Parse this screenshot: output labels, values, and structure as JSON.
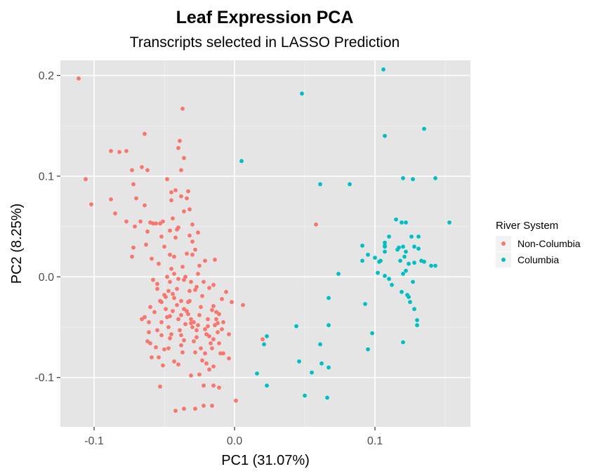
{
  "chart_data": {
    "type": "scatter",
    "title": "Leaf Expression PCA",
    "subtitle": "Transcripts selected in LASSO Prediction",
    "xlabel": "PC1 (31.07%)",
    "ylabel": "PC2 (8.25%)",
    "xlim": [
      -0.124,
      0.168
    ],
    "ylim": [
      -0.149,
      0.215
    ],
    "x_ticks": [
      -0.1,
      0.0,
      0.1
    ],
    "x_tick_labels": [
      "-0.1",
      "0.0",
      "0.1"
    ],
    "y_ticks": [
      -0.1,
      0.0,
      0.1,
      0.2
    ],
    "y_tick_labels": [
      "-0.1",
      "0.0",
      "0.1",
      "0.2"
    ],
    "grid": true,
    "panel_background": "#e5e5e5",
    "legend": {
      "title": "River System",
      "position": "right"
    },
    "series": [
      {
        "name": "Non-Columbia",
        "color": "#f8766d",
        "points": [
          [
            -0.111,
            0.197
          ],
          [
            -0.106,
            0.097
          ],
          [
            -0.102,
            0.072
          ],
          [
            -0.088,
            0.125
          ],
          [
            -0.088,
            0.077
          ],
          [
            -0.085,
            0.063
          ],
          [
            -0.082,
            0.124
          ],
          [
            -0.077,
            0.125
          ],
          [
            -0.077,
            0.055
          ],
          [
            -0.073,
            0.106
          ],
          [
            -0.072,
            0.092
          ],
          [
            -0.07,
            0.078
          ],
          [
            -0.066,
            0.109
          ],
          [
            -0.064,
            0.142
          ],
          [
            -0.062,
            0.106
          ],
          [
            -0.072,
            0.029
          ],
          [
            -0.073,
            0.02
          ],
          [
            -0.071,
            0.05
          ],
          [
            -0.067,
            0.055
          ],
          [
            -0.064,
            0.071
          ],
          [
            -0.063,
            0.032
          ],
          [
            -0.062,
            0.045
          ],
          [
            -0.06,
            0.054
          ],
          [
            -0.058,
            0.053
          ],
          [
            -0.056,
            0.053
          ],
          [
            -0.053,
            0.053
          ],
          [
            -0.051,
            0.055
          ],
          [
            -0.045,
            0.076
          ],
          [
            -0.046,
            0.046
          ],
          [
            -0.052,
            0.04
          ],
          [
            -0.05,
            0.03
          ],
          [
            -0.046,
            0.022
          ],
          [
            -0.044,
            0.058
          ],
          [
            -0.045,
            0.084
          ],
          [
            -0.048,
            0.097
          ],
          [
            -0.042,
            0.086
          ],
          [
            -0.04,
            0.128
          ],
          [
            -0.039,
            0.135
          ],
          [
            -0.037,
            0.167
          ],
          [
            -0.038,
            0.106
          ],
          [
            -0.036,
            0.118
          ],
          [
            -0.038,
            0.08
          ],
          [
            -0.036,
            0.065
          ],
          [
            -0.034,
            0.078
          ],
          [
            -0.033,
            0.085
          ],
          [
            -0.032,
            0.067
          ],
          [
            -0.03,
            0.052
          ],
          [
            -0.03,
            0.035
          ],
          [
            -0.032,
            0.041
          ],
          [
            -0.034,
            0.023
          ],
          [
            -0.03,
            0.022
          ],
          [
            -0.028,
            0.027
          ],
          [
            -0.026,
            0.044
          ],
          [
            -0.04,
            0.049
          ],
          [
            -0.041,
            0.047
          ],
          [
            -0.042,
            0.039
          ],
          [
            -0.043,
            0.02
          ],
          [
            -0.045,
            0.008
          ],
          [
            -0.043,
            0.003
          ],
          [
            -0.046,
            -0.005
          ],
          [
            -0.047,
            -0.014
          ],
          [
            -0.049,
            -0.02
          ],
          [
            -0.052,
            -0.025
          ],
          [
            -0.055,
            -0.012
          ],
          [
            -0.058,
            -0.003
          ],
          [
            -0.059,
            0.018
          ],
          [
            -0.06,
            -0.03
          ],
          [
            -0.057,
            -0.035
          ],
          [
            -0.061,
            -0.045
          ],
          [
            -0.061,
            -0.055
          ],
          [
            -0.062,
            -0.064
          ],
          [
            -0.059,
            -0.08
          ],
          [
            -0.064,
            -0.04
          ],
          [
            -0.066,
            -0.042
          ],
          [
            -0.06,
            -0.066
          ],
          [
            -0.056,
            -0.07
          ],
          [
            -0.055,
            -0.053
          ],
          [
            -0.052,
            -0.045
          ],
          [
            -0.052,
            -0.058
          ],
          [
            -0.05,
            -0.072
          ],
          [
            -0.047,
            -0.071
          ],
          [
            -0.047,
            -0.05
          ],
          [
            -0.046,
            -0.039
          ],
          [
            -0.044,
            -0.034
          ],
          [
            -0.043,
            -0.021
          ],
          [
            -0.041,
            -0.012
          ],
          [
            -0.041,
            -0.028
          ],
          [
            -0.04,
            -0.042
          ],
          [
            -0.039,
            -0.053
          ],
          [
            -0.038,
            -0.058
          ],
          [
            -0.038,
            -0.068
          ],
          [
            -0.037,
            -0.075
          ],
          [
            -0.036,
            -0.063
          ],
          [
            -0.035,
            -0.047
          ],
          [
            -0.034,
            -0.034
          ],
          [
            -0.033,
            -0.025
          ],
          [
            -0.032,
            -0.014
          ],
          [
            -0.031,
            -0.005
          ],
          [
            -0.03,
            -0.05
          ],
          [
            -0.029,
            -0.064
          ],
          [
            -0.028,
            -0.075
          ],
          [
            -0.027,
            -0.06
          ],
          [
            -0.026,
            -0.048
          ],
          [
            -0.025,
            -0.038
          ],
          [
            -0.024,
            -0.03
          ],
          [
            -0.023,
            -0.019
          ],
          [
            -0.022,
            -0.005
          ],
          [
            -0.021,
            -0.052
          ],
          [
            -0.02,
            -0.057
          ],
          [
            -0.019,
            -0.049
          ],
          [
            -0.019,
            -0.042
          ],
          [
            -0.018,
            -0.059
          ],
          [
            -0.017,
            -0.066
          ],
          [
            -0.016,
            -0.071
          ],
          [
            -0.015,
            -0.062
          ],
          [
            -0.014,
            -0.048
          ],
          [
            -0.013,
            -0.042
          ],
          [
            -0.012,
            -0.046
          ],
          [
            -0.012,
            -0.055
          ],
          [
            -0.011,
            -0.066
          ],
          [
            -0.01,
            -0.076
          ],
          [
            -0.009,
            -0.052
          ],
          [
            -0.008,
            -0.045
          ],
          [
            -0.018,
            -0.011
          ],
          [
            -0.016,
            -0.033
          ],
          [
            -0.015,
            -0.029
          ],
          [
            -0.014,
            0.017
          ],
          [
            -0.021,
            0.016
          ],
          [
            -0.025,
            0.011
          ],
          [
            -0.026,
            0.003
          ],
          [
            -0.027,
            -0.01
          ],
          [
            -0.028,
            -0.013
          ],
          [
            -0.035,
            0.0
          ],
          [
            -0.037,
            0.01
          ],
          [
            -0.036,
            -0.003
          ],
          [
            -0.04,
            -0.002
          ],
          [
            -0.048,
            0.0
          ],
          [
            -0.054,
            0.013
          ],
          [
            -0.055,
            -0.007
          ],
          [
            -0.053,
            -0.024
          ],
          [
            -0.049,
            -0.032
          ],
          [
            -0.05,
            -0.018
          ],
          [
            -0.044,
            -0.017
          ],
          [
            -0.048,
            -0.04
          ],
          [
            -0.046,
            -0.061
          ],
          [
            -0.038,
            -0.024
          ],
          [
            -0.036,
            -0.032
          ],
          [
            -0.033,
            -0.037
          ],
          [
            -0.031,
            -0.042
          ],
          [
            -0.031,
            -0.046
          ],
          [
            -0.029,
            -0.045
          ],
          [
            -0.027,
            -0.053
          ],
          [
            -0.024,
            -0.071
          ],
          [
            -0.023,
            -0.083
          ],
          [
            -0.02,
            -0.086
          ],
          [
            -0.018,
            -0.092
          ],
          [
            -0.015,
            -0.089
          ],
          [
            -0.021,
            -0.076
          ],
          [
            -0.043,
            -0.084
          ],
          [
            -0.04,
            -0.087
          ],
          [
            -0.051,
            -0.088
          ],
          [
            -0.054,
            -0.08
          ],
          [
            -0.053,
            -0.109
          ],
          [
            -0.042,
            -0.133
          ],
          [
            -0.036,
            -0.131
          ],
          [
            -0.028,
            -0.131
          ],
          [
            -0.022,
            -0.128
          ],
          [
            -0.016,
            -0.128
          ],
          [
            -0.022,
            -0.108
          ],
          [
            -0.015,
            -0.108
          ],
          [
            -0.011,
            -0.11
          ],
          [
            -0.025,
            -0.097
          ],
          [
            -0.031,
            -0.098
          ],
          [
            -0.008,
            -0.076
          ],
          [
            -0.004,
            -0.057
          ],
          [
            -0.006,
            -0.015
          ],
          [
            -0.009,
            -0.022
          ],
          [
            -0.011,
            -0.037
          ],
          [
            -0.013,
            -0.035
          ],
          [
            -0.015,
            -0.008
          ],
          [
            0.001,
            -0.123
          ],
          [
            -0.004,
            -0.081
          ],
          [
            -0.002,
            -0.025
          ],
          [
            0.006,
            -0.028
          ],
          [
            -0.038,
            -0.038
          ],
          [
            -0.045,
            -0.057
          ],
          [
            0.02,
            -0.062
          ],
          [
            0.058,
            0.052
          ],
          [
            -0.032,
            -0.024
          ]
        ]
      },
      {
        "name": "Columbia",
        "color": "#00bfc4",
        "points": [
          [
            0.048,
            0.182
          ],
          [
            0.005,
            0.115
          ],
          [
            0.061,
            0.092
          ],
          [
            0.082,
            0.092
          ],
          [
            0.106,
            0.206
          ],
          [
            0.107,
            0.14
          ],
          [
            0.135,
            0.147
          ],
          [
            0.12,
            0.098
          ],
          [
            0.127,
            0.097
          ],
          [
            0.143,
            0.098
          ],
          [
            0.153,
            0.054
          ],
          [
            0.115,
            0.057
          ],
          [
            0.119,
            0.054
          ],
          [
            0.122,
            0.054
          ],
          [
            0.11,
            0.04
          ],
          [
            0.126,
            0.04
          ],
          [
            0.131,
            0.04
          ],
          [
            0.107,
            0.034
          ],
          [
            0.107,
            0.031
          ],
          [
            0.107,
            0.03
          ],
          [
            0.091,
            0.031
          ],
          [
            0.12,
            0.03
          ],
          [
            0.117,
            0.029
          ],
          [
            0.122,
            0.025
          ],
          [
            0.116,
            0.027
          ],
          [
            0.128,
            0.03
          ],
          [
            0.131,
            0.028
          ],
          [
            0.095,
            0.022
          ],
          [
            0.107,
            0.025
          ],
          [
            0.1,
            0.019
          ],
          [
            0.104,
            0.016
          ],
          [
            0.103,
            0.015
          ],
          [
            0.091,
            0.016
          ],
          [
            0.121,
            0.02
          ],
          [
            0.118,
            0.016
          ],
          [
            0.124,
            0.013
          ],
          [
            0.128,
            0.014
          ],
          [
            0.133,
            0.016
          ],
          [
            0.135,
            0.015
          ],
          [
            0.14,
            0.011
          ],
          [
            0.143,
            0.011
          ],
          [
            0.102,
            0.004
          ],
          [
            0.107,
            0.001
          ],
          [
            0.11,
            -0.002
          ],
          [
            0.112,
            -0.008
          ],
          [
            0.12,
            0.003
          ],
          [
            0.122,
            0.006
          ],
          [
            0.127,
            -0.005
          ],
          [
            0.119,
            -0.015
          ],
          [
            0.123,
            -0.018
          ],
          [
            0.124,
            -0.02
          ],
          [
            0.125,
            -0.025
          ],
          [
            0.128,
            -0.032
          ],
          [
            0.13,
            -0.043
          ],
          [
            0.13,
            -0.048
          ],
          [
            0.12,
            -0.065
          ],
          [
            0.074,
            0.003
          ],
          [
            0.067,
            -0.021
          ],
          [
            0.093,
            -0.027
          ],
          [
            0.044,
            -0.049
          ],
          [
            0.067,
            -0.048
          ],
          [
            0.061,
            -0.067
          ],
          [
            0.098,
            -0.056
          ],
          [
            0.095,
            -0.072
          ],
          [
            0.046,
            -0.084
          ],
          [
            0.062,
            -0.086
          ],
          [
            0.067,
            -0.09
          ],
          [
            0.055,
            -0.095
          ],
          [
            0.016,
            -0.096
          ],
          [
            0.023,
            -0.059
          ],
          [
            0.021,
            -0.067
          ],
          [
            0.023,
            -0.108
          ],
          [
            0.05,
            -0.118
          ],
          [
            0.066,
            -0.12
          ]
        ]
      }
    ]
  }
}
